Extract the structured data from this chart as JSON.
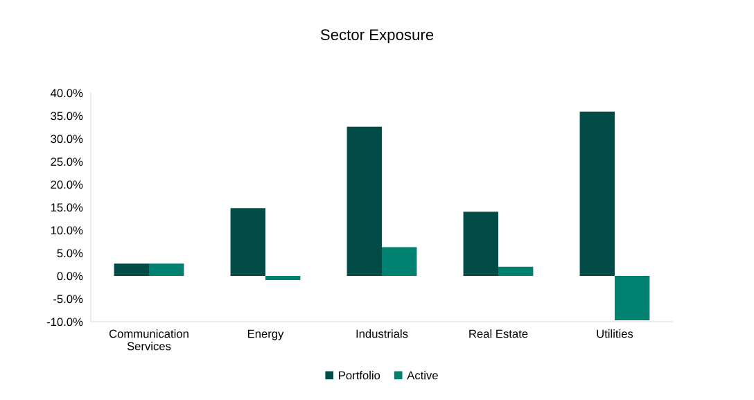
{
  "chart_data": {
    "type": "bar",
    "title": "Sector Exposure",
    "categories": [
      "Communication\nServices",
      "Energy",
      "Industrials",
      "Real Estate",
      "Utilities"
    ],
    "series": [
      {
        "name": "Portfolio",
        "color": "#024b46",
        "values": [
          2.7,
          14.8,
          32.6,
          14.0,
          35.9
        ]
      },
      {
        "name": "Active",
        "color": "#008170",
        "values": [
          2.7,
          -0.9,
          6.3,
          2.0,
          -9.7
        ]
      }
    ],
    "ylim": [
      -10,
      40
    ],
    "yticks": [
      {
        "value": -10,
        "label": "-10.0%"
      },
      {
        "value": -5,
        "label": "-5.0%"
      },
      {
        "value": 0,
        "label": "0.0%"
      },
      {
        "value": 5,
        "label": "5.0%"
      },
      {
        "value": 10,
        "label": "10.0%"
      },
      {
        "value": 15,
        "label": "15.0%"
      },
      {
        "value": 20,
        "label": "20.0%"
      },
      {
        "value": 25,
        "label": "25.0%"
      },
      {
        "value": 30,
        "label": "30.0%"
      },
      {
        "value": 35,
        "label": "35.0%"
      },
      {
        "value": 40,
        "label": "40.0%"
      }
    ],
    "legend": "bottom"
  }
}
